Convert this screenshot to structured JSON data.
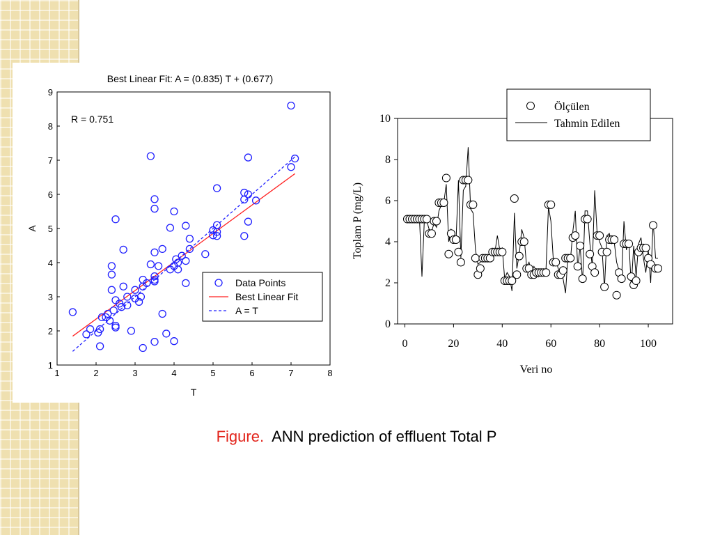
{
  "slide": {
    "caption_label": "Figure.",
    "caption_text": "ANN prediction of effluent Total P",
    "accent_color": "#e2231a",
    "background_pattern_color": "#efe0b0"
  },
  "chart_data": [
    {
      "type": "scatter",
      "title": "Best Linear Fit:  A = (0.835) T + (0.677)",
      "xlabel": "T",
      "ylabel": "A",
      "xlim": [
        1,
        8
      ],
      "ylim": [
        1,
        9
      ],
      "xticks": [
        "1",
        "2",
        "3",
        "4",
        "5",
        "6",
        "7",
        "8"
      ],
      "yticks": [
        "1",
        "2",
        "3",
        "4",
        "5",
        "6",
        "7",
        "8",
        "9"
      ],
      "annotation": "R = 0.751",
      "grid": false,
      "legend_position": "bottom-right",
      "legend": [
        "Data Points",
        "Best Linear Fit",
        "A = T"
      ],
      "colors": {
        "points": "#1f1fff",
        "fit": "#ff2020",
        "identity": "#1f1fff"
      },
      "series": [
        {
          "name": "Data Points",
          "points": [
            [
              1.4,
              2.55
            ],
            [
              1.75,
              1.9
            ],
            [
              1.85,
              2.05
            ],
            [
              2.05,
              1.95
            ],
            [
              2.1,
              1.55
            ],
            [
              2.1,
              2.05
            ],
            [
              2.15,
              2.4
            ],
            [
              2.25,
              2.4
            ],
            [
              2.3,
              2.5
            ],
            [
              2.35,
              2.3
            ],
            [
              2.4,
              3.9
            ],
            [
              2.4,
              3.65
            ],
            [
              2.4,
              3.2
            ],
            [
              2.45,
              2.6
            ],
            [
              2.5,
              2.15
            ],
            [
              2.5,
              2.1
            ],
            [
              2.5,
              2.9
            ],
            [
              2.5,
              5.27
            ],
            [
              2.6,
              2.8
            ],
            [
              2.65,
              2.7
            ],
            [
              2.7,
              3.3
            ],
            [
              2.7,
              4.38
            ],
            [
              2.8,
              2.75
            ],
            [
              2.8,
              3.0
            ],
            [
              2.9,
              2.0
            ],
            [
              3.0,
              3.2
            ],
            [
              3.0,
              2.95
            ],
            [
              3.1,
              2.85
            ],
            [
              3.15,
              3.0
            ],
            [
              3.2,
              1.5
            ],
            [
              3.2,
              3.3
            ],
            [
              3.2,
              3.5
            ],
            [
              3.3,
              3.4
            ],
            [
              3.4,
              3.95
            ],
            [
              3.4,
              7.12
            ],
            [
              3.5,
              3.6
            ],
            [
              3.5,
              3.5
            ],
            [
              3.5,
              3.45
            ],
            [
              3.5,
              4.3
            ],
            [
              3.5,
              5.58
            ],
            [
              3.5,
              5.86
            ],
            [
              3.5,
              1.68
            ],
            [
              3.6,
              3.9
            ],
            [
              3.7,
              4.4
            ],
            [
              3.7,
              2.5
            ],
            [
              3.8,
              1.92
            ],
            [
              3.9,
              3.8
            ],
            [
              3.9,
              5.02
            ],
            [
              4.0,
              1.7
            ],
            [
              4.0,
              3.9
            ],
            [
              4.0,
              5.5
            ],
            [
              4.05,
              4.1
            ],
            [
              4.1,
              3.8
            ],
            [
              4.1,
              4.0
            ],
            [
              4.2,
              4.2
            ],
            [
              4.3,
              4.05
            ],
            [
              4.3,
              5.08
            ],
            [
              4.3,
              3.4
            ],
            [
              4.4,
              4.4
            ],
            [
              4.4,
              4.7
            ],
            [
              4.8,
              4.25
            ],
            [
              5.0,
              4.8
            ],
            [
              5.0,
              4.95
            ],
            [
              5.1,
              4.78
            ],
            [
              5.1,
              4.9
            ],
            [
              5.1,
              5.1
            ],
            [
              5.1,
              6.18
            ],
            [
              5.8,
              4.78
            ],
            [
              5.8,
              6.05
            ],
            [
              5.8,
              5.85
            ],
            [
              5.9,
              6.0
            ],
            [
              5.9,
              5.2
            ],
            [
              5.9,
              7.08
            ],
            [
              6.1,
              5.82
            ],
            [
              7.0,
              8.6
            ],
            [
              7.0,
              6.8
            ],
            [
              7.1,
              7.05
            ]
          ]
        },
        {
          "name": "Best Linear Fit",
          "slope": 0.835,
          "intercept": 0.677,
          "x_range": [
            1.4,
            7.1
          ]
        },
        {
          "name": "A = T",
          "slope": 1.0,
          "intercept": 0.0,
          "x_range": [
            1.4,
            7.1
          ]
        }
      ]
    },
    {
      "type": "line",
      "xlabel": "Veri no",
      "ylabel": "Toplam P (mg/L)",
      "xlim": [
        -3,
        110
      ],
      "ylim": [
        0,
        10
      ],
      "xticks": [
        "0",
        "20",
        "40",
        "60",
        "80",
        "100"
      ],
      "yticks": [
        "0",
        "2",
        "4",
        "6",
        "8",
        "10"
      ],
      "grid": false,
      "legend_position": "top-right",
      "legend": [
        "Ölçülen",
        "Tahmin Edilen"
      ],
      "series": [
        {
          "name": "Ölçülen",
          "x": [
            1,
            2,
            3,
            4,
            5,
            6,
            7,
            8,
            9,
            10,
            11,
            12,
            13,
            14,
            15,
            16,
            17,
            18,
            19,
            20,
            21,
            22,
            23,
            24,
            25,
            26,
            27,
            28,
            29,
            30,
            31,
            32,
            33,
            34,
            35,
            36,
            37,
            38,
            39,
            40,
            41,
            42,
            43,
            44,
            45,
            46,
            47,
            48,
            49,
            50,
            51,
            52,
            53,
            54,
            55,
            56,
            57,
            58,
            59,
            60,
            61,
            62,
            63,
            64,
            65,
            66,
            67,
            68,
            69,
            70,
            71,
            72,
            73,
            74,
            75,
            76,
            77,
            78,
            79,
            80,
            81,
            82,
            83,
            84,
            85,
            86,
            87,
            88,
            89,
            90,
            91,
            92,
            93,
            94,
            95,
            96,
            97,
            98,
            99,
            100,
            101,
            102,
            103,
            104
          ],
          "values": [
            5.1,
            5.1,
            5.1,
            5.1,
            5.1,
            5.1,
            5.1,
            5.1,
            5.1,
            4.4,
            4.4,
            5.0,
            5.0,
            5.9,
            5.9,
            5.9,
            7.1,
            3.4,
            4.4,
            4.1,
            4.1,
            3.5,
            3.0,
            7.0,
            7.0,
            7.0,
            5.8,
            5.8,
            3.2,
            2.4,
            2.7,
            3.2,
            3.2,
            3.2,
            3.2,
            3.5,
            3.5,
            3.5,
            3.5,
            3.5,
            2.1,
            2.1,
            2.1,
            2.1,
            6.1,
            2.4,
            3.3,
            4.0,
            4.0,
            2.7,
            2.7,
            2.4,
            2.4,
            2.5,
            2.5,
            2.5,
            2.5,
            2.5,
            5.8,
            5.8,
            3.0,
            3.0,
            2.4,
            2.4,
            2.6,
            3.2,
            3.2,
            3.2,
            4.2,
            4.3,
            2.8,
            3.8,
            2.2,
            5.1,
            5.1,
            3.4,
            2.8,
            2.5,
            4.3,
            4.3,
            3.5,
            1.8,
            3.5,
            4.1,
            4.1,
            4.1,
            1.4,
            2.5,
            2.2,
            3.9,
            3.9,
            3.9,
            2.3,
            1.9,
            2.1,
            3.5,
            3.7,
            3.7,
            3.7,
            3.2,
            2.9,
            4.8,
            2.7,
            2.7
          ]
        },
        {
          "name": "Tahmin Edilen",
          "x": [
            1,
            2,
            3,
            4,
            5,
            6,
            7,
            8,
            9,
            10,
            11,
            12,
            13,
            14,
            15,
            16,
            17,
            18,
            19,
            20,
            21,
            22,
            23,
            24,
            25,
            26,
            27,
            28,
            29,
            30,
            31,
            32,
            33,
            34,
            35,
            36,
            37,
            38,
            39,
            40,
            41,
            42,
            43,
            44,
            45,
            46,
            47,
            48,
            49,
            50,
            51,
            52,
            53,
            54,
            55,
            56,
            57,
            58,
            59,
            60,
            61,
            62,
            63,
            64,
            65,
            66,
            67,
            68,
            69,
            70,
            71,
            72,
            73,
            74,
            75,
            76,
            77,
            78,
            79,
            80,
            81,
            82,
            83,
            84,
            85,
            86,
            87,
            88,
            89,
            90,
            91,
            92,
            93,
            94,
            95,
            96,
            97,
            98,
            99,
            100,
            101,
            102,
            103,
            104
          ],
          "values": [
            5.1,
            5.1,
            5.1,
            5.1,
            5.1,
            5.1,
            2.3,
            5.1,
            5.0,
            4.6,
            4.5,
            4.9,
            4.7,
            5.5,
            5.8,
            5.9,
            6.8,
            4.0,
            4.6,
            4.3,
            4.0,
            7.0,
            3.2,
            6.5,
            6.7,
            8.6,
            5.6,
            5.4,
            3.6,
            2.9,
            3.0,
            3.2,
            3.3,
            3.1,
            3.3,
            3.6,
            3.5,
            4.3,
            3.6,
            3.7,
            2.2,
            2.5,
            2.3,
            1.6,
            5.4,
            2.7,
            3.4,
            4.6,
            4.2,
            2.8,
            3.0,
            2.5,
            2.8,
            2.6,
            2.3,
            2.6,
            2.5,
            2.7,
            5.7,
            5.0,
            3.1,
            3.1,
            2.7,
            2.4,
            2.2,
            1.5,
            3.3,
            3.1,
            4.5,
            5.5,
            2.7,
            3.8,
            2.0,
            5.5,
            5.5,
            3.9,
            2.8,
            6.5,
            4.4,
            4.0,
            3.7,
            1.7,
            4.3,
            4.4,
            3.9,
            4.0,
            3.0,
            2.6,
            2.1,
            5.0,
            3.6,
            4.1,
            1.8,
            3.8,
            2.3,
            3.9,
            4.2,
            3.2,
            2.5,
            3.6,
            2.0,
            5.0,
            3.2,
            3.2
          ]
        }
      ]
    }
  ]
}
